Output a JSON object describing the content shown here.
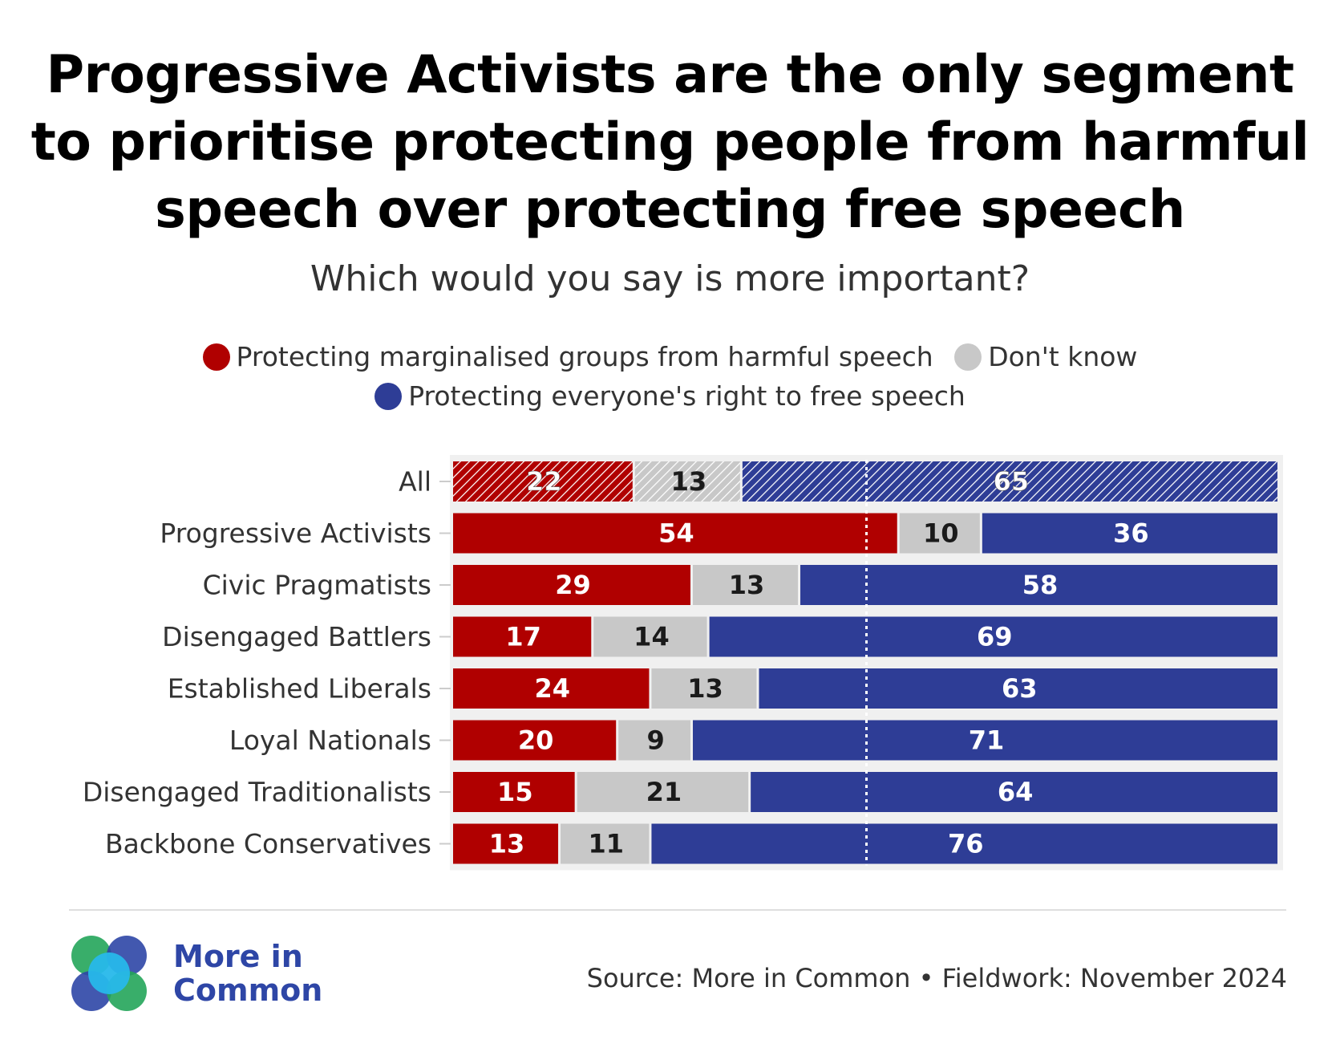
{
  "title_lines": [
    "Progressive Activists are the only segment",
    "to prioritise protecting people from harmful",
    "speech over protecting free speech"
  ],
  "subtitle": "Which would you say is more important?",
  "legend": [
    {
      "label": "Protecting marginalised groups from harmful speech",
      "color": "#b00000"
    },
    {
      "label": "Don't know",
      "color": "#c8c8c8"
    },
    {
      "label": "Protecting everyone's right to free speech",
      "color": "#2e3d96"
    }
  ],
  "colors": {
    "harmful": "#b00000",
    "dont_know": "#c8c8c8",
    "free_speech": "#2e3d96",
    "background_band": "#f0f0f0"
  },
  "chart_data": {
    "type": "bar",
    "orientation": "horizontal",
    "stacked": true,
    "categories": [
      "All",
      "Progressive Activists",
      "Civic Pragmatists",
      "Disengaged Battlers",
      "Established Liberals",
      "Loyal Nationals",
      "Disengaged Traditionalists",
      "Backbone Conservatives"
    ],
    "series": [
      {
        "name": "Protecting marginalised groups from harmful speech",
        "values": [
          22,
          54,
          29,
          17,
          24,
          20,
          15,
          13
        ]
      },
      {
        "name": "Don't know",
        "values": [
          13,
          10,
          13,
          14,
          13,
          9,
          21,
          11
        ]
      },
      {
        "name": "Protecting everyone's right to free speech",
        "values": [
          65,
          36,
          58,
          69,
          63,
          71,
          64,
          76
        ]
      }
    ],
    "hatched_rows": [
      "All"
    ],
    "reference_line": 50,
    "xlim": [
      0,
      100
    ],
    "grid": false
  },
  "logo": {
    "line1": "More in",
    "line2": "Common"
  },
  "source": "Source: More in Common • Fieldwork: November 2024"
}
